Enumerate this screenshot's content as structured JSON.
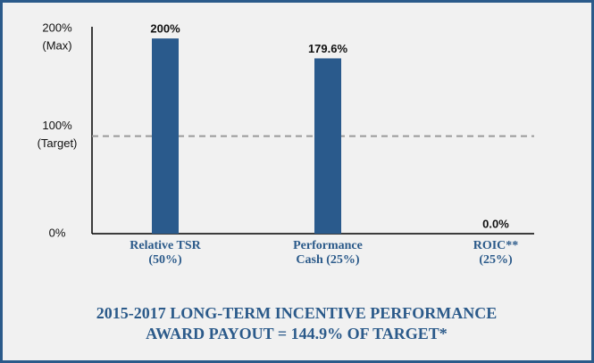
{
  "chart_data": {
    "type": "bar",
    "title": [
      "2015-2017 LONG-TERM INCENTIVE PERFORMANCE",
      "AWARD PAYOUT = 144.9% OF TARGET*"
    ],
    "categories": [
      [
        "Relative TSR",
        "(50%)"
      ],
      [
        "Performance",
        "Cash (25%)"
      ],
      [
        "ROIC**",
        "(25%)"
      ]
    ],
    "values": [
      200,
      179.6,
      0
    ],
    "value_labels": [
      "200%",
      "179.6%",
      "0.0%"
    ],
    "color": "#2a5a8c",
    "ylim": [
      0,
      212
    ],
    "yticks": [
      {
        "value": 0,
        "label": "0%"
      },
      {
        "value": 100,
        "label": "100%"
      },
      {
        "value": 200,
        "label": "200%"
      }
    ],
    "tick_annotations": [
      {
        "value": 100,
        "label": "(Target)"
      },
      {
        "value": 200,
        "label": "(Max)"
      }
    ],
    "reference_line": 100,
    "grid": false
  }
}
